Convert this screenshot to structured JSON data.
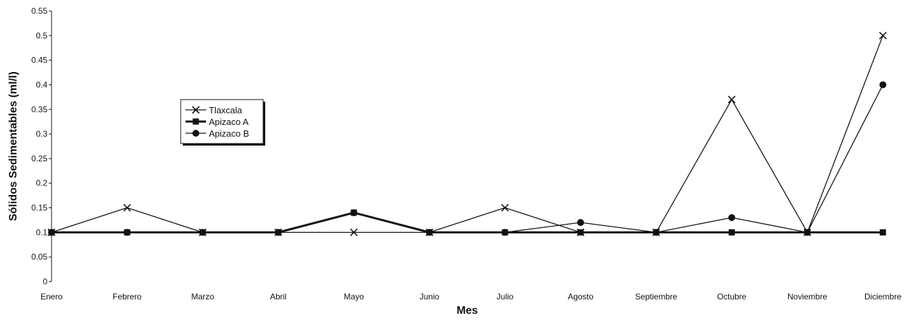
{
  "chart_data": {
    "type": "line",
    "xlabel": "Mes",
    "ylabel": "Sólidos Sedimentables (ml/l)",
    "categories": [
      "Enero",
      "Febrero",
      "Marzo",
      "Abril",
      "Mayo",
      "Junio",
      "Julio",
      "Agosto",
      "Septiembre",
      "Octubre",
      "Noviembre",
      "Diciembre"
    ],
    "y_ticks": [
      "0",
      "0.05",
      "0.1",
      "0.15",
      "0.2",
      "0.25",
      "0.3",
      "0.35",
      "0.4",
      "0.45",
      "0.5",
      "0.55"
    ],
    "ylim": [
      0,
      0.55
    ],
    "grid": false,
    "legend_position": "upper-left",
    "series": [
      {
        "name": "Tlaxcala",
        "marker": "x",
        "line_width": "thin",
        "values": [
          0.1,
          0.15,
          0.1,
          0.1,
          0.1,
          0.1,
          0.15,
          0.1,
          0.1,
          0.37,
          0.1,
          0.5
        ]
      },
      {
        "name": "Apizaco A",
        "marker": "square",
        "line_width": "thick",
        "values": [
          0.1,
          0.1,
          0.1,
          0.1,
          0.14,
          0.1,
          0.1,
          0.1,
          0.1,
          0.1,
          0.1,
          0.1
        ]
      },
      {
        "name": "Apizaco B",
        "marker": "circle",
        "line_width": "thin",
        "values": [
          0.1,
          0.1,
          0.1,
          0.1,
          0.14,
          0.1,
          0.1,
          0.12,
          0.1,
          0.13,
          0.1,
          0.4
        ]
      }
    ],
    "colors": {
      "ink": "#111111",
      "background": "#ffffff"
    }
  }
}
